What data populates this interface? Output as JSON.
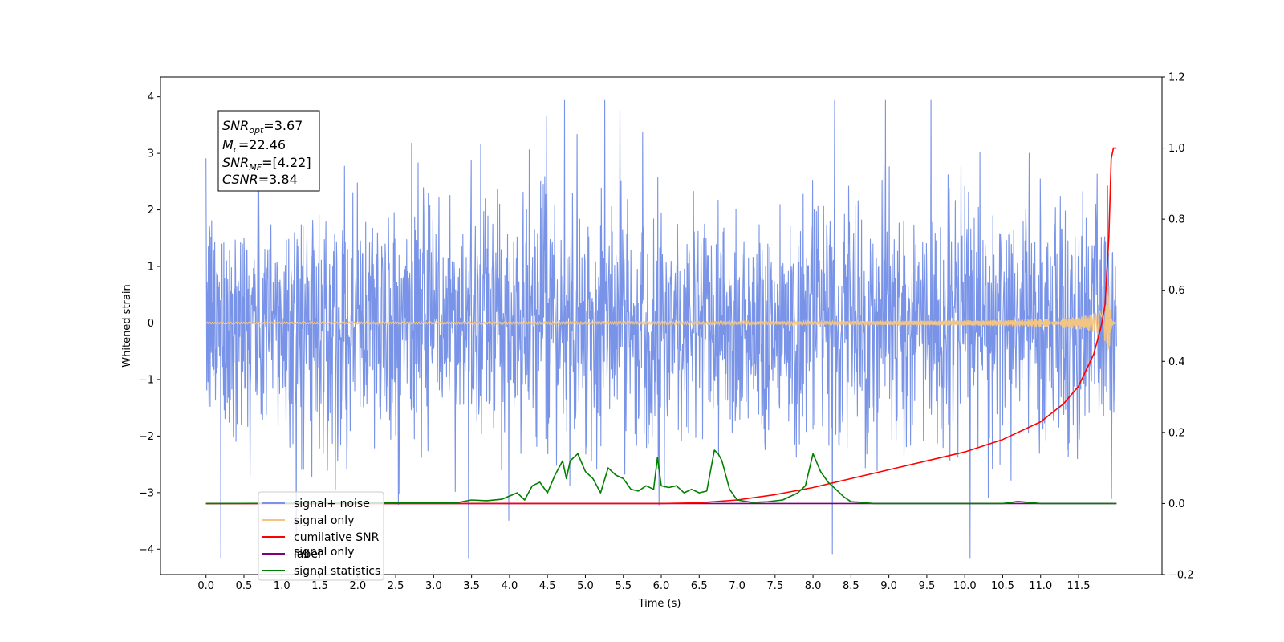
{
  "chart_data": {
    "type": "line",
    "xlabel": "Time (s)",
    "ylabel": "Whitened strain",
    "xlim": [
      -0.6,
      12.6
    ],
    "ylim_left": [
      -4.45,
      4.35
    ],
    "ylim_right": [
      -0.2,
      1.2
    ],
    "x_ticks": [
      "0.0",
      "0.5",
      "1.0",
      "1.5",
      "2.0",
      "2.5",
      "3.0",
      "3.5",
      "4.0",
      "4.5",
      "5.0",
      "5.5",
      "6.0",
      "6.5",
      "7.0",
      "7.5",
      "8.0",
      "8.5",
      "9.0",
      "9.5",
      "10.0",
      "10.5",
      "11.0",
      "11.5"
    ],
    "y_ticks_left": [
      "−4",
      "−3",
      "−2",
      "−1",
      "0",
      "1",
      "2",
      "3",
      "4"
    ],
    "y_ticks_right": [
      "−0.2",
      "0.0",
      "0.2",
      "0.4",
      "0.6",
      "0.8",
      "1.0",
      "1.2"
    ],
    "y_tick_values_left": [
      -4,
      -3,
      -2,
      -1,
      0,
      1,
      2,
      3,
      4
    ],
    "y_tick_values_right": [
      -0.2,
      0.0,
      0.2,
      0.4,
      0.6,
      0.8,
      1.0,
      1.2
    ],
    "grid": false,
    "legend_position": "lower-left",
    "series": [
      {
        "name": "signal+ noise",
        "axis": "left",
        "color": "#7893e7",
        "description_kind": "noise",
        "duration": [
          0.0,
          12.0
        ],
        "typical_amplitude": 2.5,
        "peak_amplitude": 3.95
      },
      {
        "name": "signal only",
        "axis": "left",
        "color": "#f3c584",
        "description_kind": "chirp",
        "duration": [
          0.0,
          12.0
        ],
        "merger_time": 11.9,
        "peak_amplitude": 0.8
      },
      {
        "name": "cumilative SNR",
        "axis": "right",
        "color": "#ff0000",
        "x": [
          0.0,
          6.0,
          6.5,
          7.0,
          7.5,
          8.0,
          8.5,
          9.0,
          9.5,
          10.0,
          10.5,
          11.0,
          11.3,
          11.5,
          11.7,
          11.8,
          11.85,
          11.9,
          11.93,
          11.96,
          12.0
        ],
        "y": [
          0.0,
          0.0,
          0.002,
          0.01,
          0.025,
          0.045,
          0.07,
          0.095,
          0.12,
          0.145,
          0.18,
          0.23,
          0.28,
          0.33,
          0.42,
          0.5,
          0.56,
          0.75,
          0.97,
          1.0,
          1.0
        ]
      },
      {
        "name": "label",
        "axis": "right",
        "color": "#7f007f",
        "x": [
          0.0,
          12.0
        ],
        "y": [
          0.0,
          0.0
        ]
      },
      {
        "name": "signal statistics",
        "axis": "right",
        "color": "#008000",
        "x": [
          0.0,
          3.3,
          3.5,
          3.7,
          3.9,
          4.1,
          4.2,
          4.3,
          4.4,
          4.5,
          4.6,
          4.7,
          4.75,
          4.8,
          4.9,
          5.0,
          5.1,
          5.2,
          5.3,
          5.4,
          5.5,
          5.6,
          5.7,
          5.8,
          5.9,
          5.95,
          6.0,
          6.1,
          6.2,
          6.3,
          6.4,
          6.5,
          6.6,
          6.7,
          6.75,
          6.8,
          6.9,
          7.0,
          7.2,
          7.4,
          7.6,
          7.8,
          7.9,
          8.0,
          8.1,
          8.2,
          8.3,
          8.4,
          8.5,
          8.6,
          8.8,
          10.5,
          10.7,
          11.0,
          11.5,
          12.0
        ],
        "y": [
          0.0,
          0.002,
          0.01,
          0.008,
          0.012,
          0.03,
          0.01,
          0.05,
          0.06,
          0.03,
          0.08,
          0.12,
          0.07,
          0.12,
          0.14,
          0.09,
          0.07,
          0.03,
          0.1,
          0.08,
          0.07,
          0.04,
          0.035,
          0.05,
          0.04,
          0.13,
          0.05,
          0.045,
          0.05,
          0.03,
          0.04,
          0.03,
          0.035,
          0.15,
          0.14,
          0.12,
          0.04,
          0.01,
          0.003,
          0.005,
          0.01,
          0.03,
          0.05,
          0.14,
          0.09,
          0.06,
          0.04,
          0.02,
          0.005,
          0.004,
          0.0,
          0.0,
          0.006,
          0.0,
          0.0,
          0.0
        ]
      }
    ],
    "annotation_box": {
      "snr_opt_base": "SNR",
      "snr_opt_sub": "opt",
      "snr_opt_val": "=3.67",
      "mc_base": "M",
      "mc_sub": "c",
      "mc_val": "=22.46",
      "snr_mf_base": "SNR",
      "snr_mf_sub": "MF",
      "snr_mf_val": "=[4.22]",
      "csnr_base": "CSNR",
      "csnr_val": "=3.84"
    },
    "legend": {
      "entries": [
        {
          "label": "signal+ noise",
          "color": "#7893e7"
        },
        {
          "label": "signal only",
          "color": "#f3c584"
        },
        {
          "label": "cumilative SNR",
          "color": "#ff0000"
        },
        {
          "label": "label",
          "color": "#7f007f"
        },
        {
          "label": "signal statistics",
          "color": "#008000"
        }
      ],
      "hidden_overlap_label": "signal only"
    }
  }
}
